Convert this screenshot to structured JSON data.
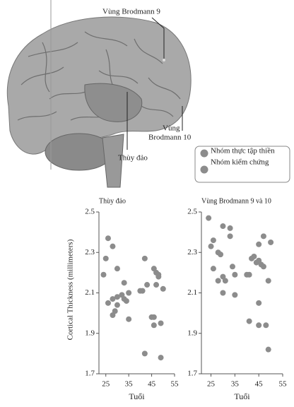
{
  "figure": {
    "labels": {
      "brodmann_9": "Vùng Brodmann 9",
      "brodmann_10": [
        "Vùng",
        "Brodmann 10"
      ],
      "insula": "Thùy đảo"
    },
    "legend": [
      {
        "name": "Nhóm thực tập thiền",
        "color": "#8c8c8c"
      },
      {
        "name": "Nhóm kiểm chứng",
        "color": "#8c8c8c"
      }
    ]
  },
  "chart_data": [
    {
      "type": "scatter",
      "title": "Thùy đảo",
      "x_label": "Tuổi",
      "y_label": "Cortical Thickness (millimeters)",
      "x": [
        26,
        28,
        24,
        30,
        25,
        26,
        28,
        30,
        32,
        35,
        33,
        29,
        28,
        30,
        34,
        35,
        33,
        40,
        41,
        42,
        43,
        46,
        47,
        48,
        47,
        50,
        48,
        45,
        46,
        46,
        49,
        42,
        49
      ],
      "values": [
        2.37,
        2.33,
        2.19,
        2.22,
        2.27,
        2.05,
        2.07,
        2.08,
        2.09,
        2.1,
        2.15,
        2.01,
        1.99,
        2.04,
        2.06,
        1.97,
        2.07,
        2.11,
        2.11,
        2.27,
        2.14,
        2.22,
        2.2,
        2.18,
        2.14,
        2.12,
        2.19,
        1.98,
        1.98,
        1.94,
        1.95,
        1.8,
        1.78
      ],
      "color": "#8c8c8c",
      "xlim": [
        22,
        55
      ],
      "ylim": [
        1.7,
        2.5
      ],
      "xticks": [
        25,
        35,
        45,
        55
      ],
      "yticks": [
        1.7,
        1.9,
        2.1,
        2.3,
        2.5
      ]
    },
    {
      "type": "scatter",
      "title": "Vùng Brodmann 9 và 10",
      "x_label": "Tuổi",
      "x": [
        24,
        26,
        25,
        30,
        33,
        33,
        28,
        29,
        26,
        28,
        30,
        31,
        30,
        34,
        35,
        35,
        40,
        41,
        42,
        43,
        45,
        46,
        44,
        45,
        47,
        50,
        47,
        49,
        45,
        41,
        45,
        48,
        49
      ],
      "values": [
        2.47,
        2.36,
        2.33,
        2.43,
        2.42,
        2.38,
        2.3,
        2.29,
        2.22,
        2.16,
        2.18,
        2.16,
        2.1,
        2.23,
        2.19,
        2.09,
        2.19,
        2.19,
        2.27,
        2.28,
        2.26,
        2.24,
        2.25,
        2.34,
        2.38,
        2.35,
        2.23,
        2.16,
        2.05,
        1.96,
        1.94,
        1.94,
        1.82
      ],
      "color": "#8c8c8c",
      "xlim": [
        21,
        55
      ],
      "ylim": [
        1.7,
        2.5
      ],
      "xticks": [
        25,
        35,
        45,
        55
      ],
      "yticks": [
        1.7,
        1.9,
        2.1,
        2.3,
        2.5
      ]
    }
  ]
}
